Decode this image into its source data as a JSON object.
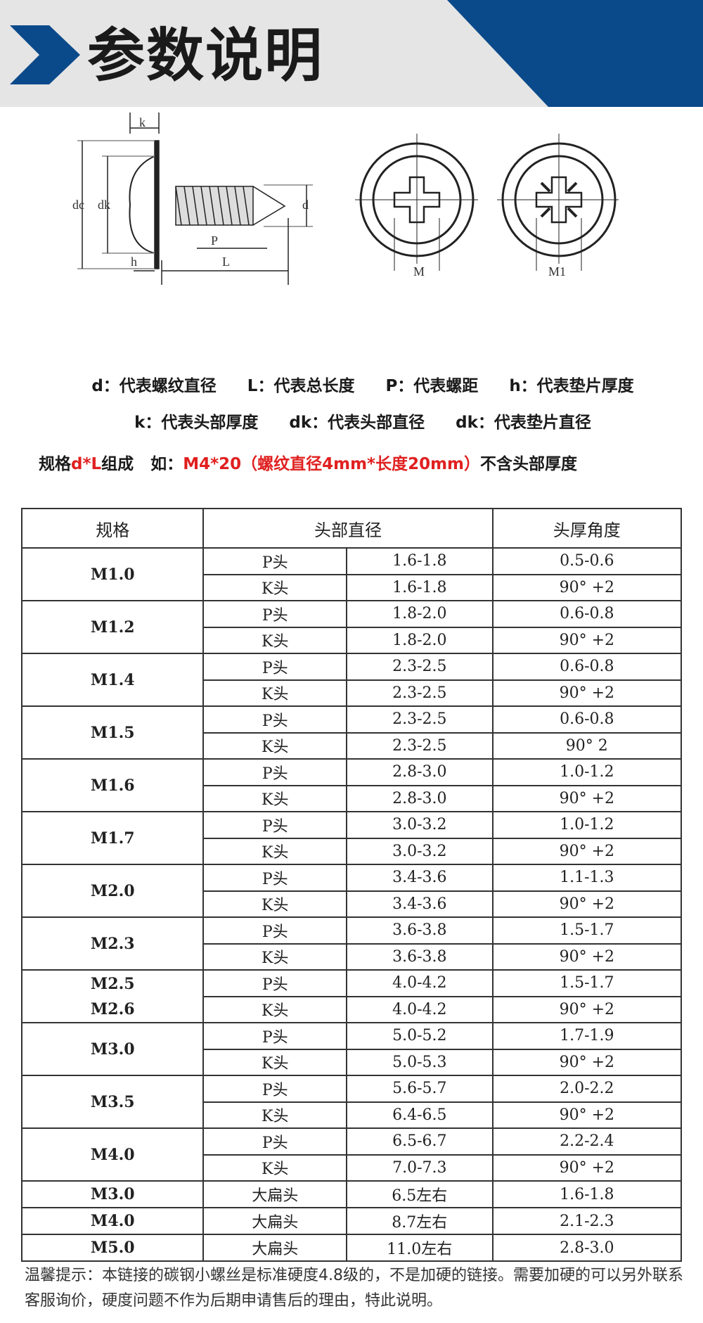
{
  "header": {
    "title": "参数说明",
    "accent_color": "#0b4a8a",
    "bg_color": "#e5e5e5"
  },
  "diagram": {
    "labels": {
      "k": "k",
      "dc": "dc",
      "dk": "dk",
      "d": "d",
      "p": "P",
      "h": "h",
      "l": "L",
      "m": "M",
      "m1": "M1"
    }
  },
  "legend": {
    "line1": [
      "d：代表螺纹直径",
      "L：代表总长度",
      "P：代表螺距",
      "h：代表垫片厚度"
    ],
    "line2": [
      "k：代表头部厚度",
      "dk：代表头部直径",
      "dk：代表垫片直径"
    ]
  },
  "spec_note": {
    "prefix": "规格",
    "formula": "d*L",
    "middle": "组成   如：",
    "example": "M4*20（螺纹直径4mm*长度20mm）",
    "suffix": "不含头部厚度"
  },
  "table": {
    "headers": [
      "规格",
      "头部直径",
      "头厚角度"
    ],
    "groups": [
      {
        "spec": [
          "M1.0"
        ],
        "rows": [
          [
            "P头",
            "1.6-1.8",
            "0.5-0.6"
          ],
          [
            "K头",
            "1.6-1.8",
            "90° +2"
          ]
        ]
      },
      {
        "spec": [
          "M1.2"
        ],
        "rows": [
          [
            "P头",
            "1.8-2.0",
            "0.6-0.8"
          ],
          [
            "K头",
            "1.8-2.0",
            "90° +2"
          ]
        ]
      },
      {
        "spec": [
          "M1.4"
        ],
        "rows": [
          [
            "P头",
            "2.3-2.5",
            "0.6-0.8"
          ],
          [
            "K头",
            "2.3-2.5",
            "90° +2"
          ]
        ]
      },
      {
        "spec": [
          "M1.5"
        ],
        "rows": [
          [
            "P头",
            "2.3-2.5",
            "0.6-0.8"
          ],
          [
            "K头",
            "2.3-2.5",
            "90° 2"
          ]
        ]
      },
      {
        "spec": [
          "M1.6"
        ],
        "rows": [
          [
            "P头",
            "2.8-3.0",
            "1.0-1.2"
          ],
          [
            "K头",
            "2.8-3.0",
            "90° +2"
          ]
        ]
      },
      {
        "spec": [
          "M1.7"
        ],
        "rows": [
          [
            "P头",
            "3.0-3.2",
            "1.0-1.2"
          ],
          [
            "K头",
            "3.0-3.2",
            "90° +2"
          ]
        ]
      },
      {
        "spec": [
          "M2.0"
        ],
        "rows": [
          [
            "P头",
            "3.4-3.6",
            "1.1-1.3"
          ],
          [
            "K头",
            "3.4-3.6",
            "90° +2"
          ]
        ]
      },
      {
        "spec": [
          "M2.3"
        ],
        "rows": [
          [
            "P头",
            "3.6-3.8",
            "1.5-1.7"
          ],
          [
            "K头",
            "3.6-3.8",
            "90° +2"
          ]
        ]
      },
      {
        "spec": [
          "M2.5",
          "M2.6"
        ],
        "rows": [
          [
            "P头",
            "4.0-4.2",
            "1.5-1.7"
          ],
          [
            "K头",
            "4.0-4.2",
            "90° +2"
          ]
        ]
      },
      {
        "spec": [
          "M3.0"
        ],
        "rows": [
          [
            "P头",
            "5.0-5.2",
            "1.7-1.9"
          ],
          [
            "K头",
            "5.0-5.3",
            "90° +2"
          ]
        ]
      },
      {
        "spec": [
          "M3.5"
        ],
        "rows": [
          [
            "P头",
            "5.6-5.7",
            "2.0-2.2"
          ],
          [
            "K头",
            "6.4-6.5",
            "90° +2"
          ]
        ]
      },
      {
        "spec": [
          "M4.0"
        ],
        "rows": [
          [
            "P头",
            "6.5-6.7",
            "2.2-2.4"
          ],
          [
            "K头",
            "7.0-7.3",
            "90° +2"
          ]
        ]
      },
      {
        "spec": [
          "M3.0"
        ],
        "rows": [
          [
            "大扁头",
            "6.5左右",
            "1.6-1.8"
          ]
        ]
      },
      {
        "spec": [
          "M4.0"
        ],
        "rows": [
          [
            "大扁头",
            "8.7左右",
            "2.1-2.3"
          ]
        ]
      },
      {
        "spec": [
          "M5.0"
        ],
        "rows": [
          [
            "大扁头",
            "11.0左右",
            "2.8-3.0"
          ]
        ]
      }
    ]
  },
  "note": "温馨提示：本链接的碳钢小螺丝是标准硬度4.8级的，不是加硬的链接。需要加硬的可以另外联系客服询价，硬度问题不作为后期申请售后的理由，特此说明。"
}
